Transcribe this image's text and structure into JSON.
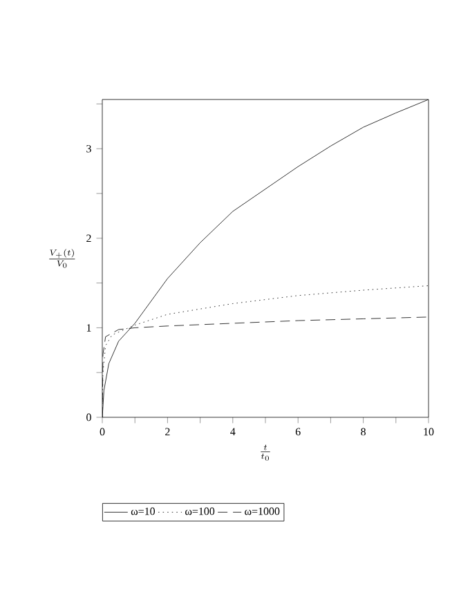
{
  "chart_data": {
    "type": "line",
    "xlabel": "\\frac{t}{t_0}",
    "ylabel": "\\frac{V_{+}\\left(t\\right)}{V_0}",
    "xlim": [
      0,
      10
    ],
    "ylim": [
      0,
      3.55
    ],
    "xticks": [
      0,
      {
        "value": 1,
        "label": null
      },
      2,
      {
        "value": 3,
        "label": null
      },
      4,
      {
        "value": 5,
        "label": null
      },
      6,
      {
        "value": 7,
        "label": null
      },
      8,
      {
        "value": 9,
        "label": null
      },
      10
    ],
    "yticks": [
      0,
      {
        "value": 0.5,
        "label": null
      },
      1,
      {
        "value": 1.5,
        "label": null
      },
      2,
      {
        "value": 2.5,
        "label": null
      },
      3,
      {
        "value": 3.5,
        "label": null
      }
    ],
    "grid": false,
    "legend": "bottom",
    "series": [
      {
        "name": "ω=10",
        "color": "#000000",
        "line_style": "solid",
        "x": [
          0,
          0.05,
          0.2,
          0.5,
          1,
          2,
          3,
          4,
          5,
          6,
          7,
          8,
          9,
          10
        ],
        "values": [
          0,
          0.3,
          0.6,
          0.85,
          1.05,
          1.55,
          1.95,
          2.3,
          2.55,
          2.8,
          3.03,
          3.24,
          3.4,
          3.55
        ]
      },
      {
        "name": "ω=100",
        "color": "#000000",
        "line_style": "dotted",
        "x": [
          0,
          0.02,
          0.1,
          0.3,
          1,
          2,
          4,
          6,
          8,
          10
        ],
        "values": [
          0,
          0.5,
          0.8,
          0.92,
          1.03,
          1.15,
          1.27,
          1.36,
          1.42,
          1.47
        ]
      },
      {
        "name": "ω=1000",
        "color": "#000000",
        "line_style": "dashed",
        "x": [
          0,
          0.02,
          0.1,
          0.5,
          1,
          2,
          4,
          6,
          8,
          10
        ],
        "values": [
          0,
          0.7,
          0.9,
          0.98,
          1.0,
          1.02,
          1.05,
          1.08,
          1.1,
          1.12
        ]
      }
    ]
  }
}
